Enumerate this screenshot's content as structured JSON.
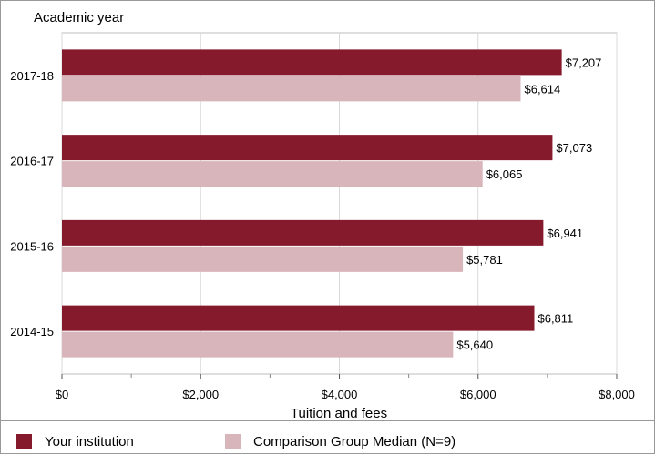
{
  "chart_data": {
    "type": "bar",
    "orientation": "horizontal",
    "ylabel": "Academic year",
    "xlabel": "Tuition and fees",
    "categories": [
      "2017-18",
      "2016-17",
      "2015-16",
      "2014-15"
    ],
    "series": [
      {
        "name": "Your institution",
        "color": "#861a2d",
        "values": [
          7207,
          7073,
          6941,
          6811
        ],
        "labels": [
          "$7,207",
          "$7,073",
          "$6,941",
          "$6,811"
        ]
      },
      {
        "name": "Comparison Group Median (N=9)",
        "color": "#d7b5bb",
        "values": [
          6614,
          6065,
          5781,
          5640
        ],
        "labels": [
          "$6,614",
          "$6,065",
          "$5,781",
          "$5,640"
        ]
      }
    ],
    "xlim": [
      0,
      8000
    ],
    "xticks": [
      0,
      2000,
      4000,
      6000,
      8000
    ],
    "xtick_labels": [
      "$0",
      "$2,000",
      "$4,000",
      "$6,000",
      "$8,000"
    ],
    "grid": true,
    "legend": "bottom"
  }
}
